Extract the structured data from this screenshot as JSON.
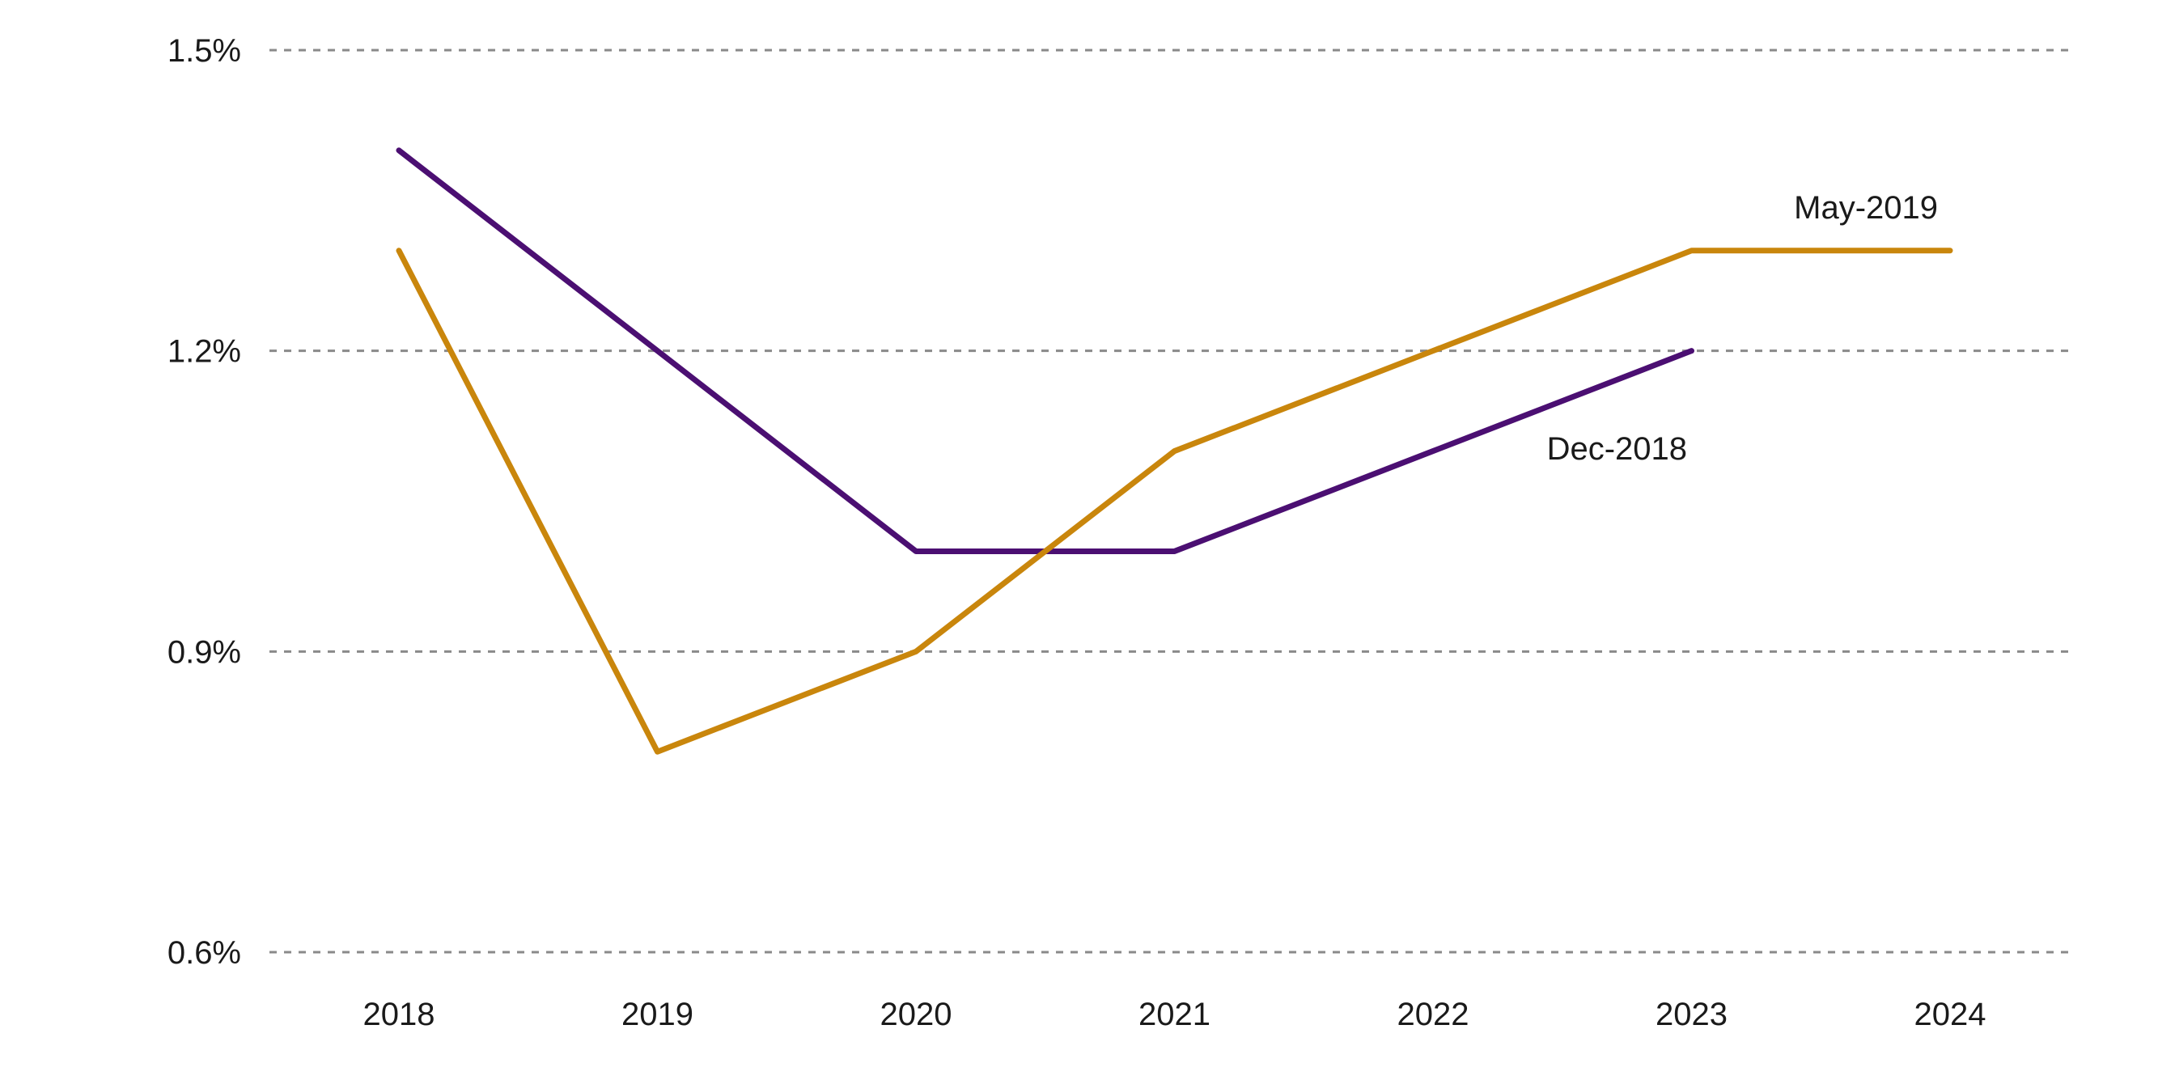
{
  "chart_data": {
    "type": "line",
    "title": "",
    "xlabel": "",
    "ylabel": "",
    "categories": [
      "2018",
      "2019",
      "2020",
      "2021",
      "2022",
      "2023",
      "2024"
    ],
    "ylim": [
      0.6,
      1.5
    ],
    "yticks": [
      0.6,
      0.9,
      1.2,
      1.5
    ],
    "ytick_labels": [
      "0.6%",
      "0.9%",
      "1.2%",
      "1.5%"
    ],
    "grid": "horizontal dashed",
    "legend": "none (series labelled directly on lines)",
    "series": [
      {
        "name": "Dec-2018",
        "color": "#4b0f72",
        "values": [
          1.4,
          1.2,
          1.0,
          1.0,
          1.1,
          1.2,
          null
        ]
      },
      {
        "name": "May-2019",
        "color": "#c9860c",
        "values": [
          1.3,
          0.8,
          0.9,
          1.1,
          1.2,
          1.3,
          1.3
        ]
      }
    ]
  }
}
